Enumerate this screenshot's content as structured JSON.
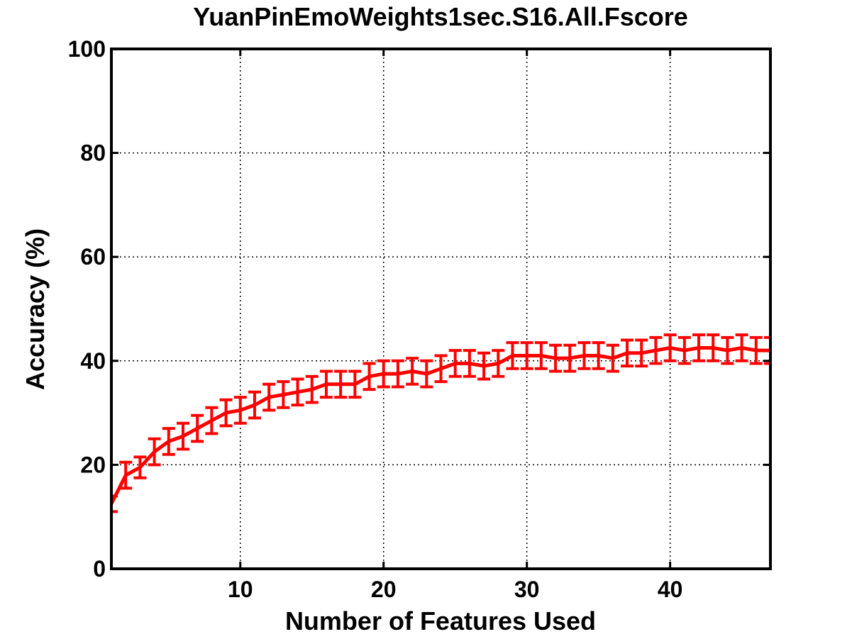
{
  "chart_data": {
    "type": "line",
    "title": "YuanPinEmoWeights1sec.S16.All.Fscore",
    "xlabel": "Number of Features Used",
    "ylabel": "Accuracy (%)",
    "xlim": [
      1,
      47
    ],
    "ylim": [
      0,
      100
    ],
    "xticks": [
      10,
      20,
      30,
      40
    ],
    "yticks": [
      0,
      20,
      40,
      60,
      80,
      100
    ],
    "grid": true,
    "color": "#ff0000",
    "series": [
      {
        "x": [
          1,
          2,
          3,
          4,
          5,
          6,
          7,
          8,
          9,
          10,
          11,
          12,
          13,
          14,
          15,
          16,
          17,
          18,
          19,
          20,
          21,
          22,
          23,
          24,
          25,
          26,
          27,
          28,
          29,
          30,
          31,
          32,
          33,
          34,
          35,
          36,
          37,
          38,
          39,
          40,
          41,
          42,
          43,
          44,
          45,
          46,
          47
        ],
        "y": [
          12.5,
          18.0,
          19.5,
          22.5,
          24.5,
          25.5,
          27.0,
          28.5,
          30.0,
          30.5,
          31.5,
          33.0,
          33.5,
          34.0,
          34.5,
          35.5,
          35.5,
          35.5,
          37.0,
          37.5,
          37.5,
          38.0,
          37.5,
          38.5,
          39.5,
          39.5,
          39.0,
          39.5,
          41.0,
          41.0,
          41.0,
          40.5,
          40.5,
          41.0,
          41.0,
          40.5,
          41.5,
          41.5,
          42.0,
          42.5,
          42.0,
          42.5,
          42.5,
          42.0,
          42.5,
          42.0,
          42.0
        ],
        "error": [
          1.5,
          2.5,
          2.0,
          2.5,
          2.5,
          2.5,
          2.5,
          2.5,
          2.5,
          2.5,
          2.5,
          2.5,
          2.5,
          2.5,
          2.5,
          2.5,
          2.5,
          2.5,
          2.5,
          2.5,
          2.5,
          2.5,
          2.5,
          2.5,
          2.5,
          2.5,
          2.5,
          2.5,
          2.5,
          2.5,
          2.5,
          2.5,
          2.5,
          2.5,
          2.5,
          2.5,
          2.5,
          2.5,
          2.5,
          2.5,
          2.5,
          2.5,
          2.5,
          2.5,
          2.5,
          2.5,
          2.5
        ]
      }
    ]
  }
}
